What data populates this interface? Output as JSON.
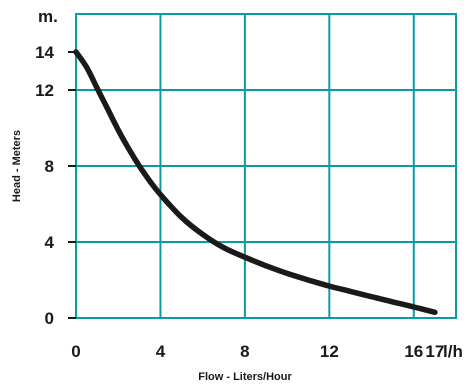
{
  "chart_data": {
    "type": "line",
    "title": "",
    "xlabel": "Flow - Liters/Hour",
    "ylabel": "Head - Meters",
    "x_unit": "l/h",
    "y_unit": "m.",
    "xlim": [
      0,
      18
    ],
    "ylim": [
      0,
      16
    ],
    "x_gridlines": [
      4,
      8,
      12,
      16
    ],
    "y_gridlines": [
      4,
      8,
      12
    ],
    "x_tick_labels": [
      "0",
      "4",
      "8",
      "12",
      "16",
      "17"
    ],
    "x_tick_values": [
      0,
      4,
      8,
      12,
      16,
      17
    ],
    "y_tick_labels": [
      "0",
      "4",
      "8",
      "12",
      "14"
    ],
    "y_tick_values": [
      0,
      4,
      8,
      12,
      14
    ],
    "grid": true,
    "grid_color": "#0a9ca5",
    "line_color": "#1a1a1a",
    "series": [
      {
        "x": [
          0,
          0.5,
          1,
          1.5,
          2,
          2.5,
          3,
          3.5,
          4,
          5,
          6,
          7,
          8,
          9,
          10,
          11,
          12,
          13,
          14,
          15,
          16,
          17
        ],
        "y": [
          14,
          13.2,
          12.1,
          11.0,
          9.9,
          8.9,
          8.0,
          7.2,
          6.5,
          5.3,
          4.4,
          3.7,
          3.2,
          2.75,
          2.35,
          2.0,
          1.68,
          1.4,
          1.12,
          0.85,
          0.58,
          0.3
        ]
      }
    ]
  }
}
